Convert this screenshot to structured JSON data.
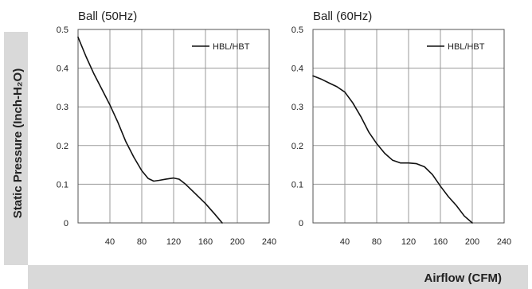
{
  "figure": {
    "ylabel": "Static Pressure (Inch-H₂O)",
    "xlabel": "Airflow (CFM)"
  },
  "chart_data": [
    {
      "type": "line",
      "title": "Ball (50Hz)",
      "xlabel": "Airflow (CFM)",
      "ylabel": "Static Pressure (Inch-H₂O)",
      "xlim": [
        0,
        240
      ],
      "ylim": [
        0,
        0.5
      ],
      "xticks": [
        "40",
        "80",
        "120",
        "160",
        "200",
        "240"
      ],
      "yticks": [
        "0",
        "0.1",
        "0.2",
        "0.3",
        "0.4",
        "0.5"
      ],
      "grid": true,
      "legend_position": "top-right",
      "series": [
        {
          "name": "HBL/HBT",
          "x": [
            0,
            10,
            20,
            30,
            40,
            50,
            60,
            70,
            80,
            88,
            95,
            102,
            110,
            120,
            127,
            135,
            145,
            160,
            172,
            181
          ],
          "y": [
            0.48,
            0.43,
            0.385,
            0.345,
            0.305,
            0.26,
            0.21,
            0.17,
            0.135,
            0.115,
            0.108,
            0.11,
            0.113,
            0.116,
            0.113,
            0.1,
            0.08,
            0.05,
            0.022,
            0.0
          ]
        }
      ]
    },
    {
      "type": "line",
      "title": "Ball (60Hz)",
      "xlabel": "Airflow (CFM)",
      "ylabel": "Static Pressure (Inch-H₂O)",
      "xlim": [
        0,
        240
      ],
      "ylim": [
        0,
        0.5
      ],
      "xticks": [
        "40",
        "80",
        "120",
        "160",
        "200",
        "240"
      ],
      "yticks": [
        "0",
        "0.1",
        "0.2",
        "0.3",
        "0.4",
        "0.5"
      ],
      "grid": true,
      "legend_position": "top-right",
      "series": [
        {
          "name": "HBL/HBT",
          "x": [
            0,
            10,
            20,
            30,
            40,
            50,
            60,
            70,
            80,
            90,
            100,
            110,
            120,
            130,
            140,
            150,
            160,
            170,
            180,
            190,
            200
          ],
          "y": [
            0.38,
            0.372,
            0.362,
            0.352,
            0.338,
            0.31,
            0.275,
            0.235,
            0.205,
            0.18,
            0.162,
            0.155,
            0.155,
            0.153,
            0.145,
            0.125,
            0.095,
            0.068,
            0.045,
            0.018,
            0.0
          ]
        }
      ]
    }
  ]
}
